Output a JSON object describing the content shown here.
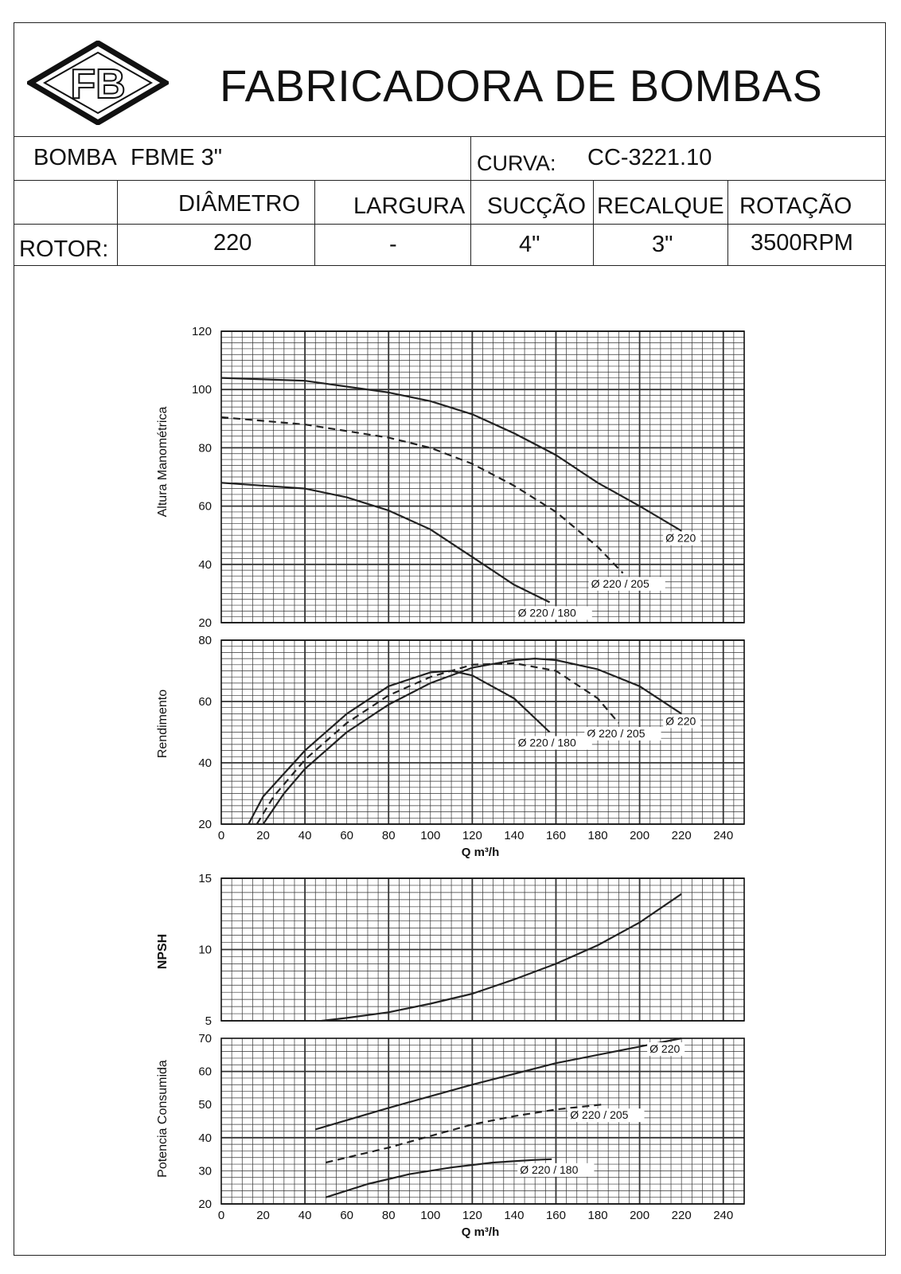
{
  "company": "FABRICADORA DE BOMBAS",
  "logo_text": "FB",
  "spec": {
    "bomba_label": "BOMBA",
    "bomba_value": "FBME 3\"",
    "curva_label": "CURVA:",
    "curva_value": "CC-3221.10",
    "headers": [
      "DIÂMETRO",
      "LARGURA",
      "SUCÇÃO",
      "RECALQUE",
      "ROTAÇÃO"
    ],
    "row_label": "ROTOR:",
    "values": [
      "220",
      "-",
      "4\"",
      "3\"",
      "3500RPM"
    ]
  },
  "colors": {
    "line": "#222222",
    "grid": "#333333"
  },
  "chart_data": [
    {
      "id": "head",
      "type": "line",
      "ylabel": "Altura Manométrica",
      "xlim": [
        0,
        250
      ],
      "ylim": [
        20,
        120
      ],
      "yticks": [
        20,
        40,
        60,
        80,
        100,
        120
      ],
      "show_xticks": false,
      "grid": true,
      "series": [
        {
          "name": "Ø 220",
          "dash": false,
          "label_pos": "end-right",
          "x": [
            0,
            40,
            80,
            100,
            120,
            140,
            160,
            180,
            200,
            220
          ],
          "y": [
            104,
            103,
            99,
            96,
            91.5,
            85,
            77.5,
            68,
            60,
            51.5
          ]
        },
        {
          "name": "Ø 220 / 205",
          "dash": true,
          "label_pos": "end-below",
          "x": [
            0,
            40,
            80,
            100,
            120,
            140,
            160,
            180,
            192
          ],
          "y": [
            90.5,
            88,
            83.5,
            80,
            74.5,
            67,
            58,
            46,
            37
          ]
        },
        {
          "name": "Ø 220 / 180",
          "dash": false,
          "label_pos": "end-below",
          "x": [
            0,
            40,
            60,
            80,
            100,
            120,
            140,
            157
          ],
          "y": [
            68,
            66,
            63,
            58.5,
            52,
            42.5,
            33,
            27
          ]
        }
      ]
    },
    {
      "id": "efficiency",
      "type": "line",
      "ylabel": "Rendimento",
      "xlim": [
        0,
        250
      ],
      "ylim": [
        20,
        80
      ],
      "yticks": [
        20,
        40,
        60,
        80
      ],
      "show_xticks": true,
      "xticks": [
        0,
        20,
        40,
        60,
        80,
        100,
        120,
        140,
        160,
        180,
        200,
        220,
        240
      ],
      "xlabel": "Q m³/h",
      "grid": true,
      "series": [
        {
          "name": "Ø 220",
          "dash": false,
          "label_pos": "end-right",
          "x": [
            20,
            30,
            40,
            60,
            80,
            100,
            120,
            140,
            150,
            160,
            180,
            200,
            220
          ],
          "y": [
            20,
            30,
            38,
            50,
            59,
            66,
            71,
            73.5,
            74,
            73.5,
            70.5,
            65,
            56
          ]
        },
        {
          "name": "Ø 220 / 205",
          "dash": true,
          "label_pos": "end-below",
          "x": [
            17,
            25,
            40,
            60,
            80,
            100,
            120,
            140,
            160,
            180,
            190
          ],
          "y": [
            20,
            29,
            41,
            53,
            62,
            68,
            72,
            72.5,
            70,
            61,
            53
          ]
        },
        {
          "name": "Ø 220 / 180",
          "dash": false,
          "label_pos": "end-below",
          "x": [
            13,
            20,
            40,
            60,
            80,
            100,
            110,
            120,
            140,
            157
          ],
          "y": [
            20,
            29,
            44,
            56,
            65,
            69.5,
            70,
            68.5,
            61,
            50
          ]
        }
      ]
    },
    {
      "id": "npsh",
      "type": "line",
      "ylabel": "NPSH",
      "xlim": [
        0,
        250
      ],
      "ylim": [
        5,
        15
      ],
      "yticks": [
        5,
        10,
        15
      ],
      "show_xticks": false,
      "grid": true,
      "series": [
        {
          "name": "",
          "dash": false,
          "x": [
            48,
            60,
            80,
            100,
            120,
            140,
            160,
            180,
            200,
            220
          ],
          "y": [
            5,
            5.2,
            5.6,
            6.2,
            6.9,
            7.9,
            9.0,
            10.3,
            11.9,
            13.9
          ]
        }
      ]
    },
    {
      "id": "power",
      "type": "line",
      "ylabel": "Potencia Consumida",
      "xlim": [
        0,
        250
      ],
      "ylim": [
        20,
        70
      ],
      "yticks": [
        20,
        30,
        40,
        50,
        60,
        70
      ],
      "show_xticks": true,
      "xticks": [
        0,
        20,
        40,
        60,
        80,
        100,
        120,
        140,
        160,
        180,
        200,
        220,
        240
      ],
      "xlabel": "Q m³/h",
      "grid": true,
      "series": [
        {
          "name": "Ø 220",
          "dash": false,
          "label_pos": "end-below",
          "x": [
            45,
            80,
            120,
            160,
            200,
            220
          ],
          "y": [
            42.5,
            49,
            56,
            62.5,
            67.5,
            70
          ]
        },
        {
          "name": "Ø 220 / 205",
          "dash": true,
          "label_pos": "end-below",
          "x": [
            50,
            80,
            100,
            120,
            140,
            160,
            182
          ],
          "y": [
            32.5,
            37,
            40.5,
            44,
            46.5,
            48.5,
            50
          ]
        },
        {
          "name": "Ø 220 / 180",
          "dash": false,
          "label_pos": "end-below",
          "x": [
            50,
            70,
            90,
            110,
            130,
            150,
            158
          ],
          "y": [
            22,
            26,
            29,
            31,
            32.5,
            33.3,
            33.5
          ]
        }
      ]
    }
  ]
}
